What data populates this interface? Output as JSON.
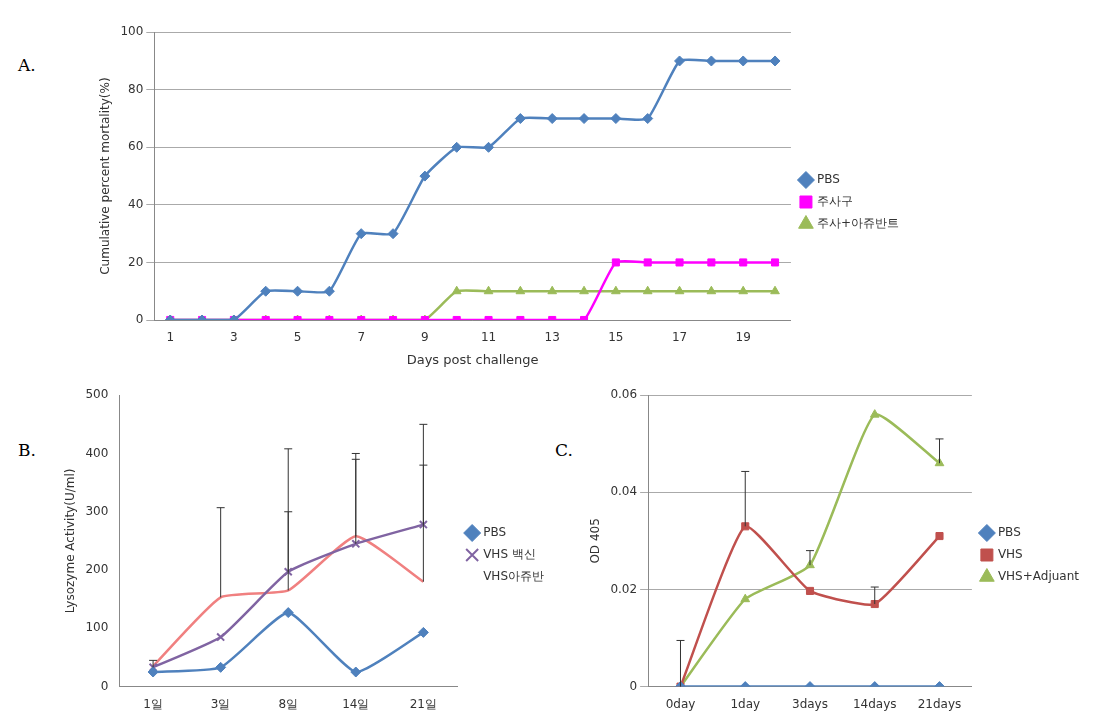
{
  "chart_data": [
    {
      "type": "line",
      "panel_label": "A.",
      "x_label": "Days post challenge",
      "y_label": "Cumulative percent mortality(%)",
      "categories": [
        1,
        null,
        3,
        null,
        5,
        null,
        7,
        null,
        9,
        null,
        11,
        null,
        13,
        null,
        15,
        null,
        17,
        null,
        19,
        null
      ],
      "ylim": [
        0,
        100
      ],
      "yticks": [
        0,
        20,
        40,
        60,
        80,
        100
      ],
      "grid": true,
      "legend": "right",
      "series": [
        {
          "name": "PBS",
          "color": "#4f81bd",
          "marker": "diamond",
          "values": [
            0,
            0,
            0,
            10,
            10,
            10,
            30,
            30,
            50,
            60,
            60,
            70,
            70,
            70,
            70,
            70,
            90,
            90,
            90,
            90
          ]
        },
        {
          "name": "주사구",
          "color": "#ff00ff",
          "marker": "square",
          "values": [
            0,
            0,
            0,
            0,
            0,
            0,
            0,
            0,
            0,
            0,
            0,
            0,
            0,
            0,
            20,
            20,
            20,
            20,
            20,
            20
          ]
        },
        {
          "name": "주사+아쥬반트",
          "color": "#9bbb59",
          "marker": "triangle",
          "values": [
            0,
            0,
            0,
            0,
            0,
            0,
            0,
            0,
            0,
            10,
            10,
            10,
            10,
            10,
            10,
            10,
            10,
            10,
            10,
            10
          ]
        }
      ]
    },
    {
      "type": "line",
      "panel_label": "B.",
      "y_label": "Lysozyme Activity(U/ml)",
      "categories": [
        "1일",
        "3일",
        "8일",
        "14일",
        "21일"
      ],
      "ylim": [
        0,
        500
      ],
      "yticks": [
        0,
        100,
        200,
        300,
        400,
        500
      ],
      "grid": false,
      "legend": "right",
      "series": [
        {
          "name": "PBS",
          "color": "#4f81bd",
          "marker": "diamond",
          "values": [
            25,
            33,
            127,
            25,
            93
          ],
          "error": [
            null,
            null,
            null,
            null,
            null
          ]
        },
        {
          "name": "VHS 백신",
          "color": "#8064a2",
          "marker": "cross",
          "values": [
            33,
            85,
            197,
            245,
            278
          ],
          "error": [
            12,
            null,
            211,
            145,
            172
          ]
        },
        {
          "name": "VHS아쥬반",
          "color": "#f08080",
          "marker": "none",
          "values": [
            35,
            153,
            165,
            258,
            180
          ],
          "error": [
            null,
            154,
            135,
            142,
            200
          ]
        }
      ]
    },
    {
      "type": "line",
      "panel_label": "C.",
      "y_label": "OD 405",
      "categories": [
        "0day",
        "1day",
        "3days",
        "14days",
        "21days"
      ],
      "ylim": [
        0,
        0.06
      ],
      "yticks": [
        0,
        0.02,
        0.04,
        0.06
      ],
      "grid": true,
      "legend": "right",
      "series": [
        {
          "name": "PBS",
          "color": "#4f81bd",
          "marker": "diamond",
          "values": [
            0,
            0,
            0,
            0,
            0
          ],
          "error": [
            0.0095,
            null,
            null,
            null,
            null
          ]
        },
        {
          "name": "VHS",
          "color": "#c0504d",
          "marker": "square",
          "values": [
            0,
            0.033,
            0.0197,
            0.017,
            0.031
          ],
          "error": [
            null,
            0.0113,
            null,
            0.0035,
            null
          ]
        },
        {
          "name": "VHS+Adjuant",
          "color": "#9bbb59",
          "marker": "triangle",
          "values": [
            0,
            0.018,
            0.025,
            0.056,
            0.046
          ],
          "error": [
            null,
            null,
            0.003,
            null,
            0.005
          ]
        }
      ]
    }
  ]
}
